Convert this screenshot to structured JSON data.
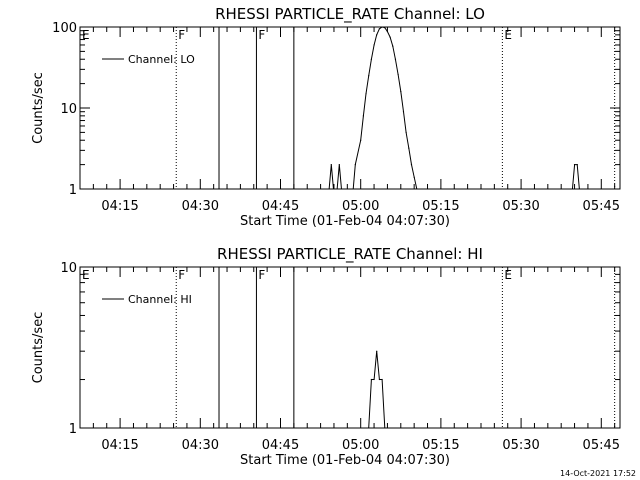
{
  "timestamp": "14-Oct-2021 17:52",
  "chart_data": [
    {
      "type": "line",
      "title": "RHESSI PARTICLE_RATE Channel: LO",
      "xlabel": "Start Time (01-Feb-04 04:07:30)",
      "ylabel": "Counts/sec",
      "yscale": "log",
      "ylim": [
        1,
        100
      ],
      "xlim": [
        "04:07:30",
        "05:48:30"
      ],
      "xticks": [
        "04:15",
        "04:30",
        "04:45",
        "05:00",
        "05:15",
        "05:30",
        "05:45"
      ],
      "yticks": [
        "1",
        "10",
        "100"
      ],
      "legend": {
        "entries": [
          "Channel: LO"
        ],
        "position": "upper-left"
      },
      "markers": [
        {
          "label": "E",
          "time": "04:07:30",
          "style": "none"
        },
        {
          "label": "F",
          "time": "04:25:30",
          "style": "dotted"
        },
        {
          "label": "",
          "time": "04:33:30",
          "style": "solid"
        },
        {
          "label": "F",
          "time": "04:40:30",
          "style": "solid"
        },
        {
          "label": "",
          "time": "04:47:30",
          "style": "solid"
        },
        {
          "label": "E",
          "time": "05:26:30",
          "style": "dotted"
        },
        {
          "label": "",
          "time": "05:47:30",
          "style": "dotted"
        }
      ],
      "series": [
        {
          "x": [
            "04:07:30",
            "04:54:00",
            "04:54:30",
            "04:55:00",
            "04:55:30",
            "04:56:00",
            "04:56:30",
            "04:57:00",
            "04:58:30",
            "04:59:00",
            "05:00:00",
            "05:00:30",
            "05:01:00",
            "05:01:30",
            "05:02:00",
            "05:02:30",
            "05:03:00",
            "05:03:30",
            "05:04:00",
            "05:04:30",
            "05:05:00",
            "05:05:30",
            "05:06:00",
            "05:06:30",
            "05:07:00",
            "05:07:30",
            "05:08:00",
            "05:08:30",
            "05:09:00",
            "05:09:30",
            "05:10:00",
            "05:10:30",
            "05:11:00",
            "05:11:30",
            "05:12:00",
            "05:12:30",
            "05:39:30",
            "05:40:00",
            "05:40:30",
            "05:41:00",
            "05:48:30"
          ],
          "y": [
            0,
            0,
            2,
            0,
            0,
            2,
            0,
            0,
            0,
            2,
            4,
            8,
            15,
            25,
            40,
            60,
            80,
            95,
            100,
            98,
            88,
            75,
            58,
            40,
            26,
            16,
            9,
            5,
            3.2,
            2,
            1.4,
            1,
            0,
            0,
            0,
            0,
            0,
            2,
            2,
            0,
            0
          ]
        }
      ]
    },
    {
      "type": "line",
      "title": "RHESSI PARTICLE_RATE Channel: HI",
      "xlabel": "Start Time (01-Feb-04 04:07:30)",
      "ylabel": "Counts/sec",
      "yscale": "log",
      "ylim": [
        1,
        10
      ],
      "xlim": [
        "04:07:30",
        "05:48:30"
      ],
      "xticks": [
        "04:15",
        "04:30",
        "04:45",
        "05:00",
        "05:15",
        "05:30",
        "05:45"
      ],
      "yticks": [
        "1",
        "10"
      ],
      "legend": {
        "entries": [
          "Channel: HI"
        ],
        "position": "upper-left"
      },
      "markers": [
        {
          "label": "E",
          "time": "04:07:30",
          "style": "none"
        },
        {
          "label": "F",
          "time": "04:25:30",
          "style": "dotted"
        },
        {
          "label": "",
          "time": "04:33:30",
          "style": "solid"
        },
        {
          "label": "F",
          "time": "04:40:30",
          "style": "solid"
        },
        {
          "label": "",
          "time": "04:47:30",
          "style": "solid"
        },
        {
          "label": "E",
          "time": "05:26:30",
          "style": "dotted"
        },
        {
          "label": "",
          "time": "05:47:30",
          "style": "dotted"
        }
      ],
      "series": [
        {
          "x": [
            "04:07:30",
            "05:01:00",
            "05:01:30",
            "05:02:00",
            "05:02:30",
            "05:03:00",
            "05:03:30",
            "05:04:00",
            "05:04:30",
            "05:05:00",
            "05:48:30"
          ],
          "y": [
            0,
            0,
            1,
            2,
            2,
            3,
            2,
            2,
            1,
            0,
            0
          ]
        }
      ]
    }
  ]
}
